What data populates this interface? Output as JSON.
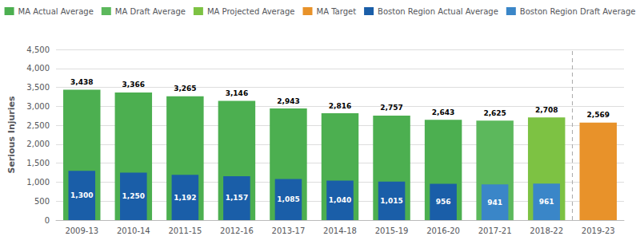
{
  "chart_data": {
    "type": "bar",
    "ylabel": "Serious Injuries",
    "categories": [
      "2009-13",
      "2010-14",
      "2011-15",
      "2012-16",
      "2013-17",
      "2014-18",
      "2015-19",
      "2016-20",
      "2017-21",
      "2018-22",
      "2019-23"
    ],
    "series": [
      {
        "name": "MA Actual Average",
        "color": "#4caf50",
        "values": [
          3438,
          3366,
          3265,
          3146,
          2943,
          2816,
          2757,
          2643,
          null,
          null,
          null
        ],
        "value_labels": [
          "3,438",
          "3,366",
          "3,265",
          "3,146",
          "2,943",
          "2,816",
          "2,757",
          "2,643",
          null,
          null,
          null
        ]
      },
      {
        "name": "MA Draft Average",
        "color": "#5cb85c",
        "values": [
          null,
          null,
          null,
          null,
          null,
          null,
          null,
          null,
          2625,
          null,
          null
        ],
        "value_labels": [
          null,
          null,
          null,
          null,
          null,
          null,
          null,
          null,
          "2,625",
          null,
          null
        ]
      },
      {
        "name": "MA Projected Average",
        "color": "#7dc243",
        "values": [
          null,
          null,
          null,
          null,
          null,
          null,
          null,
          null,
          null,
          2708,
          null
        ],
        "value_labels": [
          null,
          null,
          null,
          null,
          null,
          null,
          null,
          null,
          null,
          "2,708",
          null
        ]
      },
      {
        "name": "MA Target",
        "color": "#e8922a",
        "values": [
          null,
          null,
          null,
          null,
          null,
          null,
          null,
          null,
          null,
          null,
          2569
        ],
        "value_labels": [
          null,
          null,
          null,
          null,
          null,
          null,
          null,
          null,
          null,
          null,
          "2,569"
        ]
      },
      {
        "name": "Boston Region Actual Average",
        "color": "#1a5ea8",
        "values": [
          1300,
          1250,
          1192,
          1157,
          1085,
          1040,
          1015,
          956,
          null,
          null,
          null
        ],
        "value_labels": [
          "1,300",
          "1,250",
          "1,192",
          "1,157",
          "1,085",
          "1,040",
          "1,015",
          "956",
          null,
          null,
          null
        ]
      },
      {
        "name": "Boston Region Draft Average",
        "color": "#3a86c8",
        "values": [
          null,
          null,
          null,
          null,
          null,
          null,
          null,
          null,
          941,
          961,
          null
        ],
        "value_labels": [
          null,
          null,
          null,
          null,
          null,
          null,
          null,
          null,
          "941",
          "961",
          null
        ]
      }
    ],
    "ylim": [
      0,
      4500
    ],
    "yticks": [
      0,
      500,
      {
        "value": 1000,
        "label": "1,000"
      },
      {
        "value": 1500,
        "label": "1,500"
      },
      {
        "value": 2000,
        "label": "2,000"
      },
      {
        "value": 2500,
        "label": "2,500"
      },
      {
        "value": 3000,
        "label": "3,000"
      },
      {
        "value": 3500,
        "label": "3,500"
      },
      {
        "value": 4000,
        "label": "4,000"
      },
      {
        "value": 4500,
        "label": "4,500"
      }
    ],
    "grid": true,
    "legend": "top",
    "data_labels": true
  }
}
